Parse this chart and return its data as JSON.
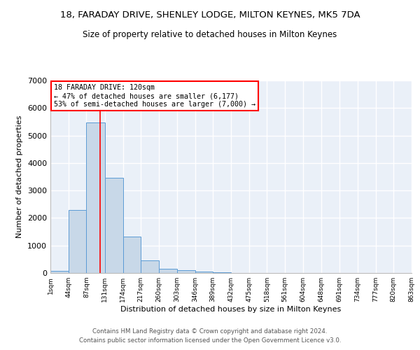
{
  "title": "18, FARADAY DRIVE, SHENLEY LODGE, MILTON KEYNES, MK5 7DA",
  "subtitle": "Size of property relative to detached houses in Milton Keynes",
  "xlabel": "Distribution of detached houses by size in Milton Keynes",
  "ylabel": "Number of detached properties",
  "bar_color": "#c8d8e8",
  "bar_edge_color": "#5b9bd5",
  "background_color": "#eaf0f8",
  "grid_color": "#ffffff",
  "bins": [
    1,
    44,
    87,
    131,
    174,
    217,
    260,
    303,
    346,
    389,
    432,
    475,
    518,
    561,
    604,
    648,
    691,
    734,
    777,
    820,
    863
  ],
  "bin_labels": [
    "1sqm",
    "44sqm",
    "87sqm",
    "131sqm",
    "174sqm",
    "217sqm",
    "260sqm",
    "303sqm",
    "346sqm",
    "389sqm",
    "432sqm",
    "475sqm",
    "518sqm",
    "561sqm",
    "604sqm",
    "648sqm",
    "691sqm",
    "734sqm",
    "777sqm",
    "820sqm",
    "863sqm"
  ],
  "values": [
    80,
    2280,
    5480,
    3450,
    1320,
    470,
    160,
    90,
    55,
    30,
    0,
    0,
    0,
    0,
    0,
    0,
    0,
    0,
    0,
    0
  ],
  "ylim": [
    0,
    7000
  ],
  "yticks": [
    0,
    1000,
    2000,
    3000,
    4000,
    5000,
    6000,
    7000
  ],
  "red_line_x": 120,
  "annotation_title": "18 FARADAY DRIVE: 120sqm",
  "annotation_line1": "← 47% of detached houses are smaller (6,177)",
  "annotation_line2": "53% of semi-detached houses are larger (7,000) →",
  "footer1": "Contains HM Land Registry data © Crown copyright and database right 2024.",
  "footer2": "Contains public sector information licensed under the Open Government Licence v3.0."
}
